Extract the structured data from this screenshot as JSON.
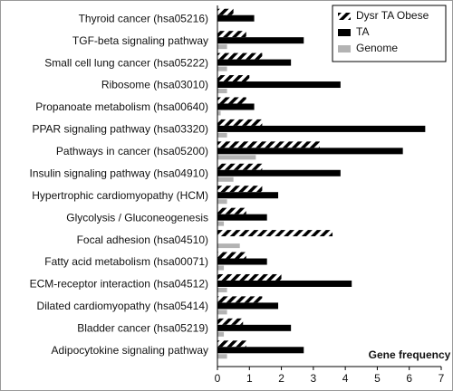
{
  "chart_data": {
    "type": "hbar",
    "x_label": "Gene frequency (%)",
    "categories": [
      "Thyroid cancer (hsa05216)",
      "TGF-beta signaling pathway",
      "Small cell lung cancer (hsa05222)",
      "Ribosome (hsa03010)",
      "Propanoate metabolism (hsa00640)",
      "PPAR signaling pathway (hsa03320)",
      "Pathways in cancer (hsa05200)",
      "Insulin signaling pathway (hsa04910)",
      "Hypertrophic cardiomyopathy (HCM)",
      "Glycolysis / Gluconeogenesis",
      "Focal adhesion (hsa04510)",
      "Fatty acid metabolism (hsa00071)",
      "ECM-receptor interaction (hsa04512)",
      "Dilated cardiomyopathy (hsa05414)",
      "Bladder cancer (hsa05219)",
      "Adipocytokine signaling pathway"
    ],
    "series": [
      {
        "name": "Dysr TA Obese",
        "color": "#000000",
        "pattern": "hatch",
        "values": [
          0.5,
          0.9,
          1.4,
          1.0,
          0.9,
          1.4,
          3.2,
          1.4,
          1.4,
          0.9,
          3.6,
          0.9,
          2.0,
          1.4,
          0.8,
          0.9
        ]
      },
      {
        "name": "TA",
        "color": "#000000",
        "values": [
          1.15,
          2.7,
          2.3,
          3.85,
          1.15,
          6.5,
          5.8,
          3.85,
          1.9,
          1.55,
          0,
          1.55,
          4.2,
          1.9,
          2.3,
          2.7
        ]
      },
      {
        "name": "Genome",
        "color": "#b3b3b3",
        "values": [
          0,
          0.3,
          0.3,
          0.3,
          0.1,
          0.3,
          1.2,
          0.5,
          0.3,
          0.2,
          0.7,
          0.2,
          0.3,
          0.3,
          0.2,
          0.3
        ]
      }
    ],
    "xlim": [
      0,
      7
    ],
    "xticks": [
      0,
      1,
      2,
      3,
      4,
      5,
      6,
      7
    ],
    "legend": "top-right"
  }
}
